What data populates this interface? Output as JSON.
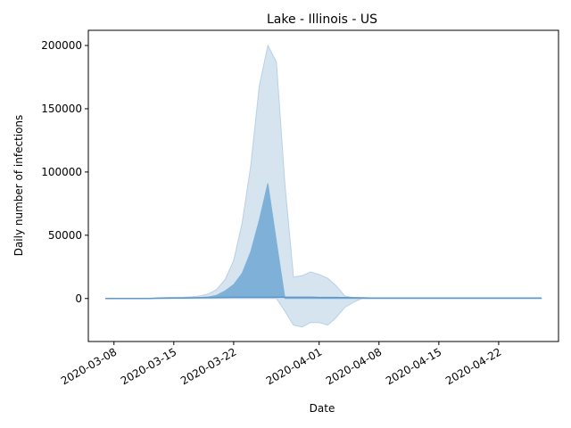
{
  "chart_data": {
    "type": "area",
    "title": "Lake - Illinois - US",
    "xlabel": "Date",
    "ylabel": "Daily number of infections",
    "x_ticks": [
      "2020-03-08",
      "2020-03-15",
      "2020-03-22",
      "2020-04-01",
      "2020-04-08",
      "2020-04-15",
      "2020-04-22"
    ],
    "y_ticks": [
      "0",
      "50000",
      "100000",
      "150000",
      "200000"
    ],
    "xlim": [
      "2020-03-05",
      "2020-04-29"
    ],
    "ylim": [
      -34000,
      212000
    ],
    "grid": false,
    "colors": {
      "band": "#d6e4f0",
      "band_edge": "#b8d0e6",
      "inner": "#7fb0d7",
      "line": "#5f97c9"
    },
    "x": [
      "2020-03-07",
      "2020-03-08",
      "2020-03-09",
      "2020-03-10",
      "2020-03-11",
      "2020-03-12",
      "2020-03-13",
      "2020-03-14",
      "2020-03-15",
      "2020-03-16",
      "2020-03-17",
      "2020-03-18",
      "2020-03-19",
      "2020-03-20",
      "2020-03-21",
      "2020-03-22",
      "2020-03-23",
      "2020-03-24",
      "2020-03-25",
      "2020-03-26",
      "2020-03-27",
      "2020-03-28",
      "2020-03-29",
      "2020-03-30",
      "2020-03-31",
      "2020-04-01",
      "2020-04-02",
      "2020-04-03",
      "2020-04-04",
      "2020-04-05",
      "2020-04-06",
      "2020-04-07",
      "2020-04-08",
      "2020-04-09",
      "2020-04-10",
      "2020-04-11",
      "2020-04-12",
      "2020-04-13",
      "2020-04-14",
      "2020-04-15",
      "2020-04-16",
      "2020-04-17",
      "2020-04-18",
      "2020-04-19",
      "2020-04-20",
      "2020-04-21",
      "2020-04-22",
      "2020-04-23",
      "2020-04-24",
      "2020-04-25",
      "2020-04-26",
      "2020-04-27"
    ],
    "series": [
      {
        "role": "band-upper",
        "values": [
          0,
          0,
          0,
          0,
          0,
          0,
          500,
          800,
          1000,
          1000,
          1200,
          2000,
          3500,
          7000,
          15000,
          30000,
          60000,
          105000,
          168000,
          200000,
          187000,
          90000,
          17000,
          18000,
          21000,
          19000,
          16000,
          10000,
          2000,
          500,
          200,
          100,
          100,
          100,
          100,
          100,
          100,
          100,
          100,
          100,
          100,
          100,
          100,
          100,
          100,
          100,
          100,
          100,
          100,
          100,
          100,
          100
        ]
      },
      {
        "role": "band-lower",
        "values": [
          0,
          0,
          0,
          0,
          0,
          0,
          0,
          0,
          0,
          0,
          0,
          0,
          0,
          0,
          0,
          0,
          0,
          0,
          0,
          0,
          0,
          -10000,
          -21000,
          -22500,
          -19000,
          -19000,
          -21000,
          -15000,
          -7000,
          -3000,
          0,
          0,
          0,
          0,
          0,
          0,
          0,
          0,
          0,
          0,
          0,
          0,
          0,
          0,
          0,
          0,
          0,
          0,
          0,
          0,
          0,
          0
        ]
      },
      {
        "role": "inner-upper",
        "values": [
          0,
          0,
          0,
          0,
          0,
          0,
          300,
          400,
          500,
          500,
          600,
          800,
          1200,
          2500,
          6000,
          11000,
          20000,
          37000,
          62000,
          91000,
          45000,
          0,
          0,
          0,
          0,
          0,
          0,
          0,
          0,
          0,
          0,
          0,
          0,
          0,
          0,
          0,
          0,
          0,
          0,
          0,
          0,
          0,
          0,
          0,
          0,
          0,
          0,
          0,
          0,
          0,
          0,
          0
        ]
      },
      {
        "role": "median",
        "values": [
          0,
          0,
          0,
          0,
          0,
          0,
          200,
          300,
          400,
          400,
          500,
          600,
          700,
          800,
          900,
          1000,
          1000,
          1000,
          1000,
          1000,
          1000,
          1000,
          1000,
          1000,
          1000,
          800,
          800,
          800,
          700,
          600,
          500,
          400,
          400,
          400,
          400,
          400,
          400,
          400,
          400,
          400,
          400,
          400,
          400,
          400,
          400,
          400,
          400,
          400,
          400,
          400,
          400,
          400
        ]
      }
    ]
  }
}
